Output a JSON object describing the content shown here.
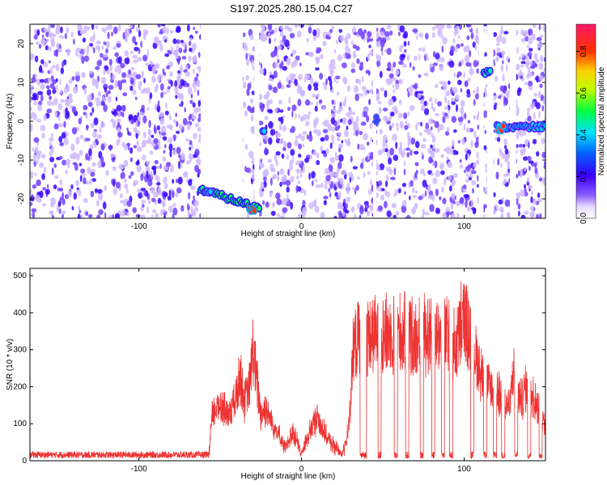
{
  "figure": {
    "title": "S197.2025.280.15.04.C27"
  },
  "chart_data": [
    {
      "type": "heatmap",
      "xlabel": "Height of straight line (km)",
      "ylabel": "Frequency (Hz)",
      "xlim": [
        -167,
        150
      ],
      "ylim": [
        -25,
        25
      ],
      "xticks": [
        -100,
        0,
        100
      ],
      "yticks": [
        -20,
        -10,
        0,
        10,
        20
      ],
      "colorbar": {
        "label": "Normalized spectral amplitude",
        "range": [
          0,
          0.93
        ],
        "ticks": [
          0.0,
          0.2,
          0.4,
          0.6,
          0.8
        ]
      },
      "background_noise_level": 0.1,
      "gaps_x": [
        [
          -62,
          -36
        ],
        [
          -29,
          -26
        ],
        [
          44,
          46
        ],
        [
          109,
          112
        ],
        [
          114,
          118
        ],
        [
          128,
          132
        ]
      ],
      "features": [
        {
          "x0": -62,
          "x1": -26,
          "y0": -17.5,
          "y1": -22.5,
          "amplitude": 0.5
        },
        {
          "x0": -59,
          "x1": -56,
          "y0": -18,
          "y1": -18,
          "amplitude": 0.4
        },
        {
          "x0": -32,
          "x1": -29,
          "y0": -22.5,
          "y1": -22.5,
          "amplitude": 0.8
        },
        {
          "x0": -24,
          "x1": -23,
          "y0": -2,
          "y1": -2,
          "amplitude": 0.4
        },
        {
          "x0": 46,
          "x1": 46,
          "y0": 0.5,
          "y1": 0.5,
          "amplitude": 0.3
        },
        {
          "x0": 112,
          "x1": 116,
          "y0": 12.5,
          "y1": 12.5,
          "amplitude": 0.45
        },
        {
          "x0": 120,
          "x1": 150,
          "y0": -1.5,
          "y1": -1.5,
          "amplitude": 0.4
        },
        {
          "x0": 121,
          "x1": 124,
          "y0": -1.8,
          "y1": -1.8,
          "amplitude": 0.85
        }
      ]
    },
    {
      "type": "line",
      "xlabel": "Height of straight line (km)",
      "ylabel": "SNR (10 * v/v)",
      "xlim": [
        -167,
        150
      ],
      "ylim": [
        0,
        520
      ],
      "xticks": [
        -100,
        0,
        100
      ],
      "yticks": [
        0,
        100,
        200,
        300,
        400,
        500
      ],
      "series": [
        {
          "color": "#ee3333",
          "x": [
            -167,
            -140,
            -110,
            -80,
            -57,
            -55,
            -50,
            -45,
            -40,
            -38,
            -35,
            -32,
            -30,
            -27,
            -25,
            -22,
            -20,
            -15,
            -10,
            -5,
            0,
            5,
            10,
            15,
            20,
            25,
            28,
            30,
            32,
            35,
            38,
            40,
            45,
            50,
            55,
            60,
            65,
            70,
            75,
            80,
            85,
            90,
            95,
            98,
            100,
            103,
            106,
            110,
            115,
            120,
            125,
            128,
            130,
            135,
            138,
            140,
            143,
            145,
            150
          ],
          "y": [
            20,
            20,
            20,
            20,
            20,
            150,
            200,
            150,
            220,
            300,
            200,
            250,
            380,
            250,
            160,
            180,
            150,
            100,
            40,
            100,
            20,
            100,
            150,
            80,
            50,
            20,
            80,
            200,
            380,
            410,
            420,
            430,
            420,
            430,
            425,
            430,
            425,
            420,
            430,
            430,
            420,
            420,
            380,
            460,
            480,
            430,
            380,
            300,
            250,
            230,
            200,
            180,
            300,
            200,
            250,
            200,
            230,
            190,
            120
          ]
        }
      ],
      "dropouts": [
        [
          36,
          40
        ],
        [
          47,
          49
        ],
        [
          57,
          59
        ],
        [
          64,
          66
        ],
        [
          73,
          75
        ],
        [
          80,
          82
        ],
        [
          86,
          88
        ],
        [
          91,
          93
        ],
        [
          104,
          106
        ],
        [
          112,
          114
        ],
        [
          118,
          120
        ],
        [
          123,
          125
        ],
        [
          131,
          133
        ],
        [
          139,
          141
        ],
        [
          146,
          148
        ]
      ]
    }
  ]
}
